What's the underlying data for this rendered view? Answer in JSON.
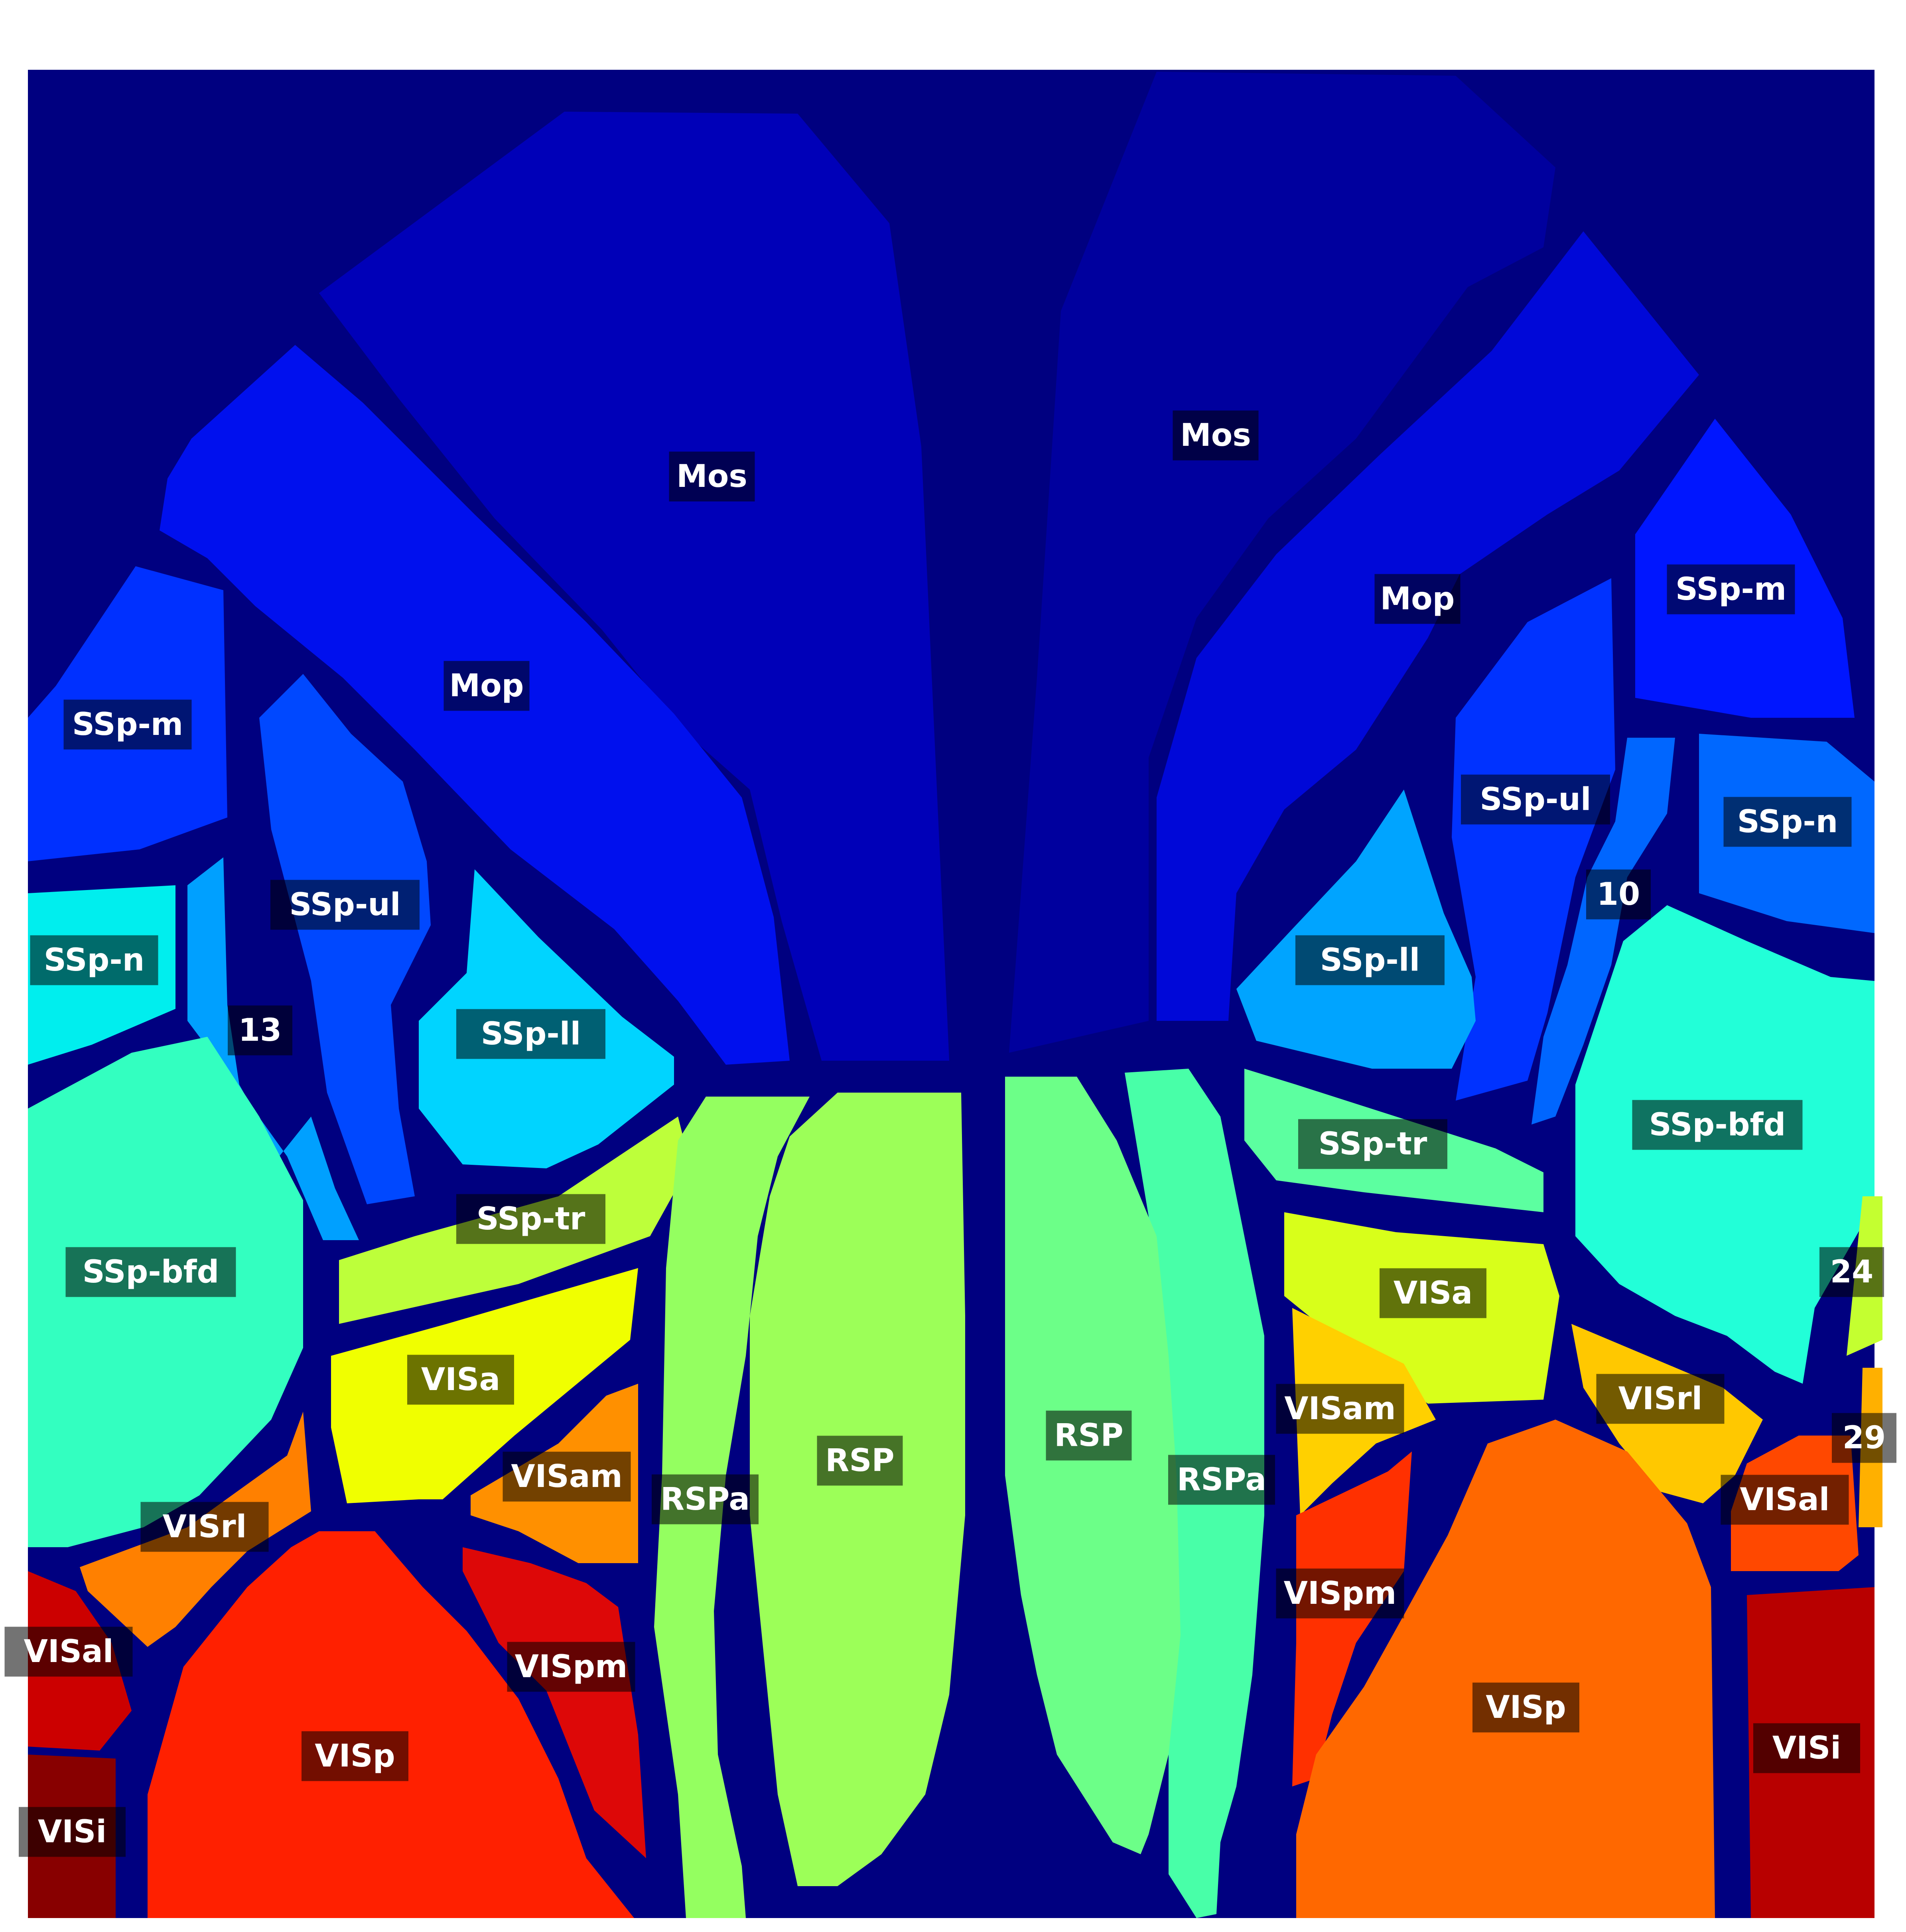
{
  "colors": {
    "background": "#000080",
    "label_box": "#000000",
    "label_text": "#ffffff"
  },
  "regions": [
    {
      "id": "mos-left",
      "label": "Mos",
      "color": "#0000b8"
    },
    {
      "id": "mos-right",
      "label": "Mos",
      "color": "#00009e"
    },
    {
      "id": "mop-left",
      "label": "Mop",
      "color": "#0010ee"
    },
    {
      "id": "mop-right",
      "label": "Mop",
      "color": "#0008d8"
    },
    {
      "id": "ssp-m-left",
      "label": "SSp-m",
      "color": "#0030ff"
    },
    {
      "id": "ssp-m-right",
      "label": "SSp-m",
      "color": "#0016ff"
    },
    {
      "id": "ssp-ul-left",
      "label": "SSp-ul",
      "color": "#0048ff"
    },
    {
      "id": "ssp-ul-right",
      "label": "SSp-ul",
      "color": "#0032ff"
    },
    {
      "id": "ssp-n-left",
      "label": "SSp-n",
      "color": "#00eeee"
    },
    {
      "id": "ssp-n-right",
      "label": "SSp-n",
      "color": "#0068ff"
    },
    {
      "id": "region-13",
      "label": "13",
      "color": "#00a0ff"
    },
    {
      "id": "region-10",
      "label": "10",
      "color": "#0066ff"
    },
    {
      "id": "ssp-ll-left",
      "label": "SSp-ll",
      "color": "#00d4ff"
    },
    {
      "id": "ssp-ll-right",
      "label": "SSp-ll",
      "color": "#00a4ff"
    },
    {
      "id": "ssp-bfd-left",
      "label": "SSp-bfd",
      "color": "#33ffc0"
    },
    {
      "id": "ssp-bfd-right",
      "label": "SSp-bfd",
      "color": "#22ffd8"
    },
    {
      "id": "ssp-tr-left",
      "label": "SSp-tr",
      "color": "#bdff3a"
    },
    {
      "id": "ssp-tr-right",
      "label": "SSp-tr",
      "color": "#5cffa0"
    },
    {
      "id": "region-24",
      "label": "24",
      "color": "#c4ff30"
    },
    {
      "id": "region-29",
      "label": "29",
      "color": "#ffb000"
    },
    {
      "id": "visa-left",
      "label": "VISa",
      "color": "#f0ff00"
    },
    {
      "id": "visa-right",
      "label": "VISa",
      "color": "#d8ff1a"
    },
    {
      "id": "visam-left",
      "label": "VISam",
      "color": "#ff9000"
    },
    {
      "id": "visam-right",
      "label": "VISam",
      "color": "#ffd000"
    },
    {
      "id": "visrl-left",
      "label": "VISrl",
      "color": "#ff8000"
    },
    {
      "id": "visrl-right",
      "label": "VISrl",
      "color": "#ffc800"
    },
    {
      "id": "rspa-left",
      "label": "RSPa",
      "color": "#94ff60"
    },
    {
      "id": "rspa-right",
      "label": "RSPa",
      "color": "#48ffa8"
    },
    {
      "id": "rsp-left",
      "label": "RSP",
      "color": "#9cff58"
    },
    {
      "id": "rsp-right",
      "label": "RSP",
      "color": "#6cff88"
    },
    {
      "id": "visal-left",
      "label": "VISal",
      "color": "#cc0000"
    },
    {
      "id": "visal-right",
      "label": "VISal",
      "color": "#ff4800"
    },
    {
      "id": "vispm-left",
      "label": "VISpm",
      "color": "#dd0808"
    },
    {
      "id": "vispm-right",
      "label": "VISpm",
      "color": "#ff3000"
    },
    {
      "id": "visp-left",
      "label": "VISp",
      "color": "#ff2000"
    },
    {
      "id": "visp-right",
      "label": "VISp",
      "color": "#ff6800"
    },
    {
      "id": "visi-left",
      "label": "VISi",
      "color": "#880000"
    },
    {
      "id": "visi-right",
      "label": "VISi",
      "color": "#b80000"
    }
  ]
}
